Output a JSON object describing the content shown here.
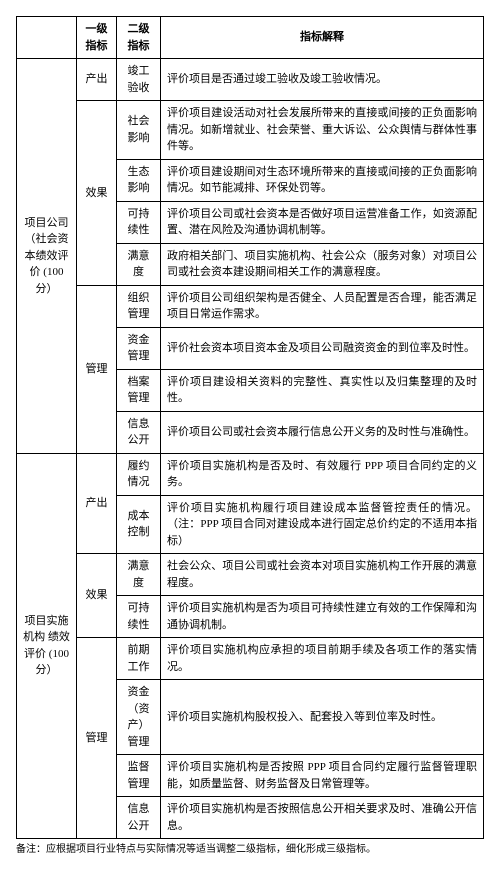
{
  "headers": {
    "c0": "",
    "c1": "一级指标",
    "c2": "二级指标",
    "c3": "指标解释"
  },
  "g1": {
    "label": "项目公司（社会资本绩效评价 (100 分）"
  },
  "g1s1": {
    "label": "产出"
  },
  "g1s1r1": {
    "name": "竣工验收",
    "desc": "评价项目是否通过竣工验收及竣工验收情况。"
  },
  "g1s2": {
    "label": "效果"
  },
  "g1s2r1": {
    "name": "社会影响",
    "desc": "评价项目建设活动对社会发展所带来的直接或间接的正负面影响情况。如新增就业、社会荣誉、重大诉讼、公众舆情与群体性事件等。"
  },
  "g1s2r2": {
    "name": "生态影响",
    "desc": "评价项目建设期间对生态环境所带来的直接或间接的正负面影响情况。如节能减排、环保处罚等。"
  },
  "g1s2r3": {
    "name": "可持续性",
    "desc": "评价项目公司或社会资本是否做好项目运营准备工作，如资源配置、潜在风险及沟通协调机制等。"
  },
  "g1s2r4": {
    "name": "满意度",
    "desc": "政府相关部门、项目实施机构、社会公众（服务对象）对项目公司或社会资本建设期间相关工作的满意程度。"
  },
  "g1s3": {
    "label": "管理"
  },
  "g1s3r1": {
    "name": "组织管理",
    "desc": "评价项目公司组织架构是否健全、人员配置是否合理，能否满足项目日常运作需求。"
  },
  "g1s3r2": {
    "name": "资金管理",
    "desc": "评价社会资本项目资本金及项目公司融资资金的到位率及时性。"
  },
  "g1s3r3": {
    "name": "档案管理",
    "desc": "评价项目建设相关资料的完整性、真实性以及归集整理的及时性。"
  },
  "g1s3r4": {
    "name": "信息公开",
    "desc": "评价项目公司或社会资本履行信息公开义务的及时性与准确性。"
  },
  "g2": {
    "label": "项目实施机构\n绩效评价 (100 分）"
  },
  "g2s1": {
    "label": "产出"
  },
  "g2s1r1": {
    "name": "履约情况",
    "desc": "评价项目实施机构是否及时、有效履行 PPP 项目合同约定的义务。"
  },
  "g2s1r2": {
    "name": "成本控制",
    "desc": "评价项目实施机构履行项目建设成本监督管控责任的情况。（注：PPP 项目合同对建设成本进行固定总价约定的不适用本指标）"
  },
  "g2s2": {
    "label": "效果"
  },
  "g2s2r1": {
    "name": "满意度",
    "desc": "社会公众、项目公司或社会资本对项目实施机构工作开展的满意程度。"
  },
  "g2s2r2": {
    "name": "可持续性",
    "desc": "评价项目实施机构是否为项目可持续性建立有效的工作保障和沟通协调机制。"
  },
  "g2s3": {
    "label": "管理"
  },
  "g2s3r1": {
    "name": "前期工作",
    "desc": "评价项目实施机构应承担的项目前期手续及各项工作的落实情况。"
  },
  "g2s3r2": {
    "name": "资金（资产）管理",
    "desc": "评价项目实施机构股权投入、配套投入等到位率及时性。"
  },
  "g2s3r3": {
    "name": "监督管理",
    "desc": "评价项目实施机构是否按照 PPP 项目合同约定履行监督管理职能，如质量监督、财务监督及日常管理等。"
  },
  "g2s3r4": {
    "name": "信息公开",
    "desc": "评价项目实施机构是否按照信息公开相关要求及时、准确公开信息。"
  },
  "footnote": "备注：应根据项目行业特点与实际情况等适当调整二级指标，细化形成三级指标。"
}
